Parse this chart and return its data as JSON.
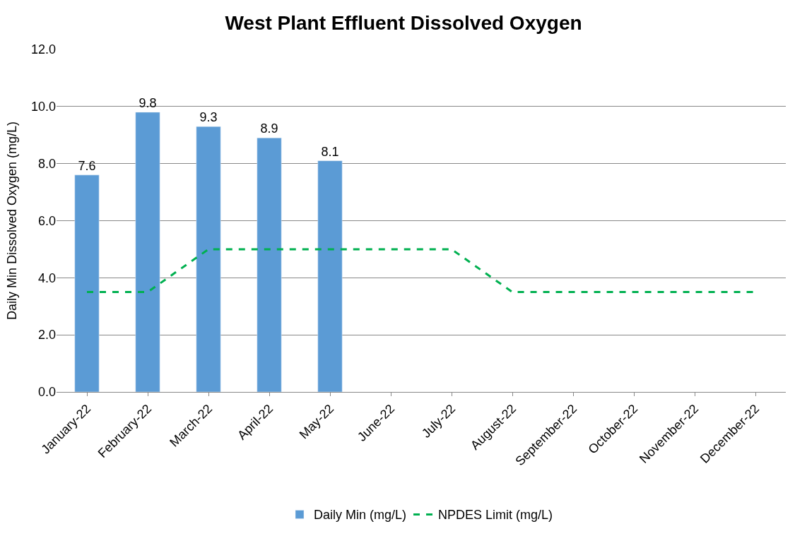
{
  "chart_data": {
    "type": "bar",
    "title": "West Plant Effluent Dissolved Oxygen",
    "ylabel": "Daily Min Dissolved Oxygen (mg/L)",
    "categories": [
      "January-22",
      "February-22",
      "March-22",
      "April-22",
      "May-22",
      "June-22",
      "July-22",
      "August-22",
      "September-22",
      "October-22",
      "November-22",
      "December-22"
    ],
    "series": [
      {
        "name": "Daily Min (mg/L)",
        "color": "#5b9bd5",
        "values": [
          7.6,
          9.8,
          9.3,
          8.9,
          8.1,
          null,
          null,
          null,
          null,
          null,
          null,
          null
        ],
        "value_labels": [
          "7.6",
          "9.8",
          "9.3",
          "8.9",
          "8.1",
          null,
          null,
          null,
          null,
          null,
          null,
          null
        ]
      },
      {
        "name": "NPDES Limit (mg/L)",
        "type": "line",
        "color": "#00b050",
        "line_style": "dashed",
        "values": [
          3.5,
          3.5,
          5.0,
          5.0,
          5.0,
          5.0,
          5.0,
          3.5,
          3.5,
          3.5,
          3.5,
          3.5
        ]
      }
    ],
    "ylim": [
      0,
      12
    ],
    "yticks": [
      {
        "value": 0,
        "label": "0.0"
      },
      {
        "value": 2,
        "label": "2.0"
      },
      {
        "value": 4,
        "label": "4.0"
      },
      {
        "value": 6,
        "label": "6.0"
      },
      {
        "value": 8,
        "label": "8.0"
      },
      {
        "value": 10,
        "label": "10.0"
      },
      {
        "value": 12,
        "label": "12.0"
      }
    ],
    "grid": "y",
    "legend": "bottom",
    "marker": "none"
  }
}
